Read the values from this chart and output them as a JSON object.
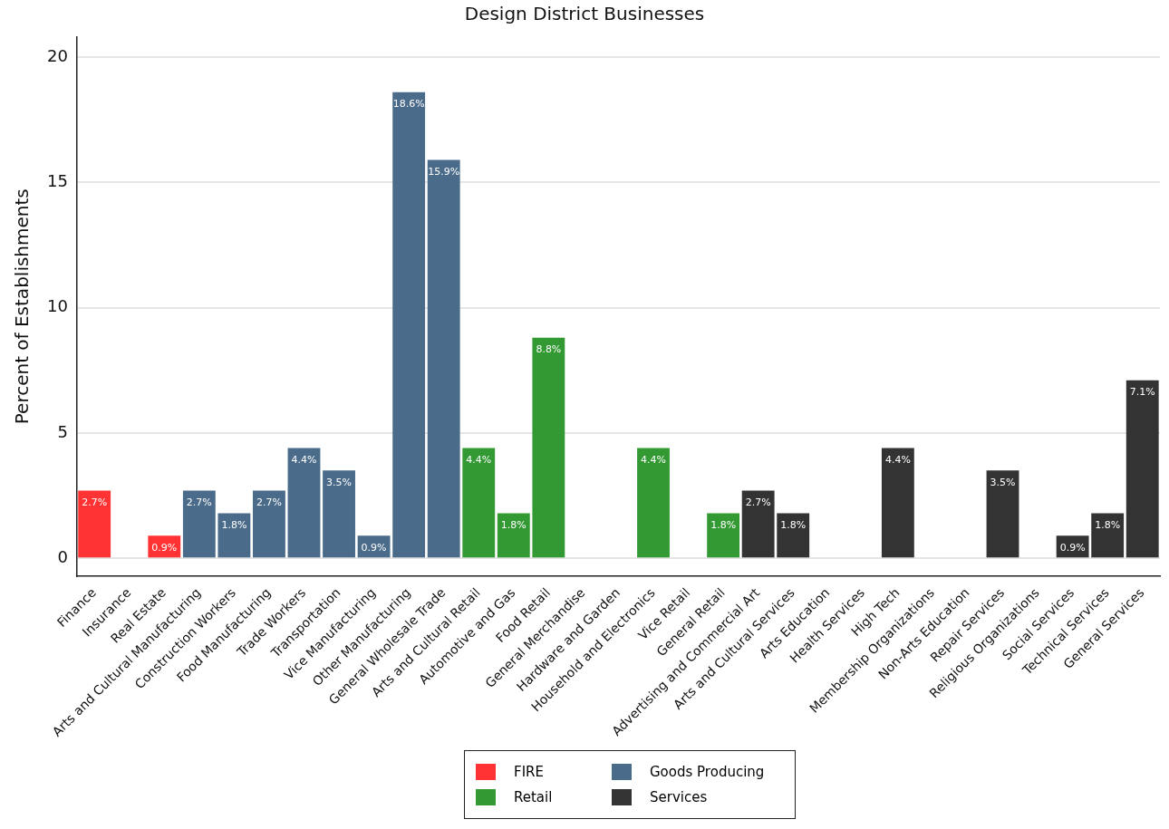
{
  "chart_data": {
    "type": "bar",
    "title": "Design District Businesses",
    "ylabel": "Percent of Establishments",
    "categories": [
      "Finance",
      "Insurance",
      "Real Estate",
      "Arts and Cultural Manufacturing",
      "Construction Workers",
      "Food Manufacturing",
      "Trade Workers",
      "Transportation",
      "Vice Manufacturing",
      "Other Manufacturing",
      "General Wholesale Trade",
      "Arts and Cultural Retail",
      "Automotive and Gas",
      "Food Retail",
      "General Merchandise",
      "Hardware and Garden",
      "Household and Electronics",
      "Vice Retail",
      "General Retail",
      "Advertising and Commercial Art",
      "Arts and Cultural Services",
      "Arts Education",
      "Health Services",
      "High Tech",
      "Membership Organizations",
      "Non-Arts Education",
      "Repair Services",
      "Religious Organizations",
      "Social Services",
      "Technical Services",
      "General Services"
    ],
    "stacked": true,
    "series": [
      {
        "name": "FIRE",
        "color": "#ff3333",
        "values": [
          2.7,
          0,
          0.9,
          null,
          null,
          null,
          null,
          null,
          null,
          null,
          null,
          null,
          null,
          null,
          null,
          null,
          null,
          null,
          null,
          null,
          null,
          null,
          null,
          null,
          null,
          null,
          null,
          null,
          null,
          null,
          null
        ],
        "value_labels": [
          "2.7%",
          null,
          "0.9%",
          null,
          null,
          null,
          null,
          null,
          null,
          null,
          null,
          null,
          null,
          null,
          null,
          null,
          null,
          null,
          null,
          null,
          null,
          null,
          null,
          null,
          null,
          null,
          null,
          null,
          null,
          null,
          null
        ]
      },
      {
        "name": "Goods Producing",
        "color": "#4a6b8a",
        "values": [
          null,
          null,
          null,
          2.7,
          1.8,
          2.7,
          4.4,
          3.5,
          0.9,
          18.6,
          15.9,
          null,
          null,
          null,
          null,
          null,
          null,
          null,
          null,
          null,
          null,
          null,
          null,
          null,
          null,
          null,
          null,
          null,
          null,
          null,
          null
        ],
        "value_labels": [
          null,
          null,
          null,
          "2.7%",
          "1.8%",
          "2.7%",
          "4.4%",
          "3.5%",
          "0.9%",
          "18.6%",
          "15.9%",
          null,
          null,
          null,
          null,
          null,
          null,
          null,
          null,
          null,
          null,
          null,
          null,
          null,
          null,
          null,
          null,
          null,
          null,
          null,
          null
        ]
      },
      {
        "name": "Retail",
        "color": "#339933",
        "values": [
          null,
          null,
          null,
          null,
          null,
          null,
          null,
          null,
          null,
          null,
          null,
          4.4,
          1.8,
          8.8,
          0,
          0,
          4.4,
          0,
          1.8,
          null,
          null,
          null,
          null,
          null,
          null,
          null,
          null,
          null,
          null,
          null,
          null
        ],
        "value_labels": [
          null,
          null,
          null,
          null,
          null,
          null,
          null,
          null,
          null,
          null,
          null,
          "4.4%",
          "1.8%",
          "8.8%",
          null,
          null,
          "4.4%",
          null,
          "1.8%",
          null,
          null,
          null,
          null,
          null,
          null,
          null,
          null,
          null,
          null,
          null,
          null
        ]
      },
      {
        "name": "Services",
        "color": "#333333",
        "values": [
          null,
          null,
          null,
          null,
          null,
          null,
          null,
          null,
          null,
          null,
          null,
          null,
          null,
          null,
          null,
          null,
          null,
          null,
          null,
          2.7,
          1.8,
          0,
          0,
          4.4,
          0,
          0,
          3.5,
          0,
          0.9,
          1.8,
          7.1
        ],
        "value_labels": [
          null,
          null,
          null,
          null,
          null,
          null,
          null,
          null,
          null,
          null,
          null,
          null,
          null,
          null,
          null,
          null,
          null,
          null,
          null,
          "2.7%",
          "1.8%",
          null,
          null,
          "4.4%",
          null,
          null,
          "3.5%",
          null,
          "0.9%",
          "1.8%",
          "7.1%"
        ]
      }
    ],
    "ylim": [
      -0.7,
      20.8
    ],
    "yticks": [
      0,
      5,
      10,
      15,
      20
    ],
    "grid": "y",
    "legend": "bottom"
  }
}
